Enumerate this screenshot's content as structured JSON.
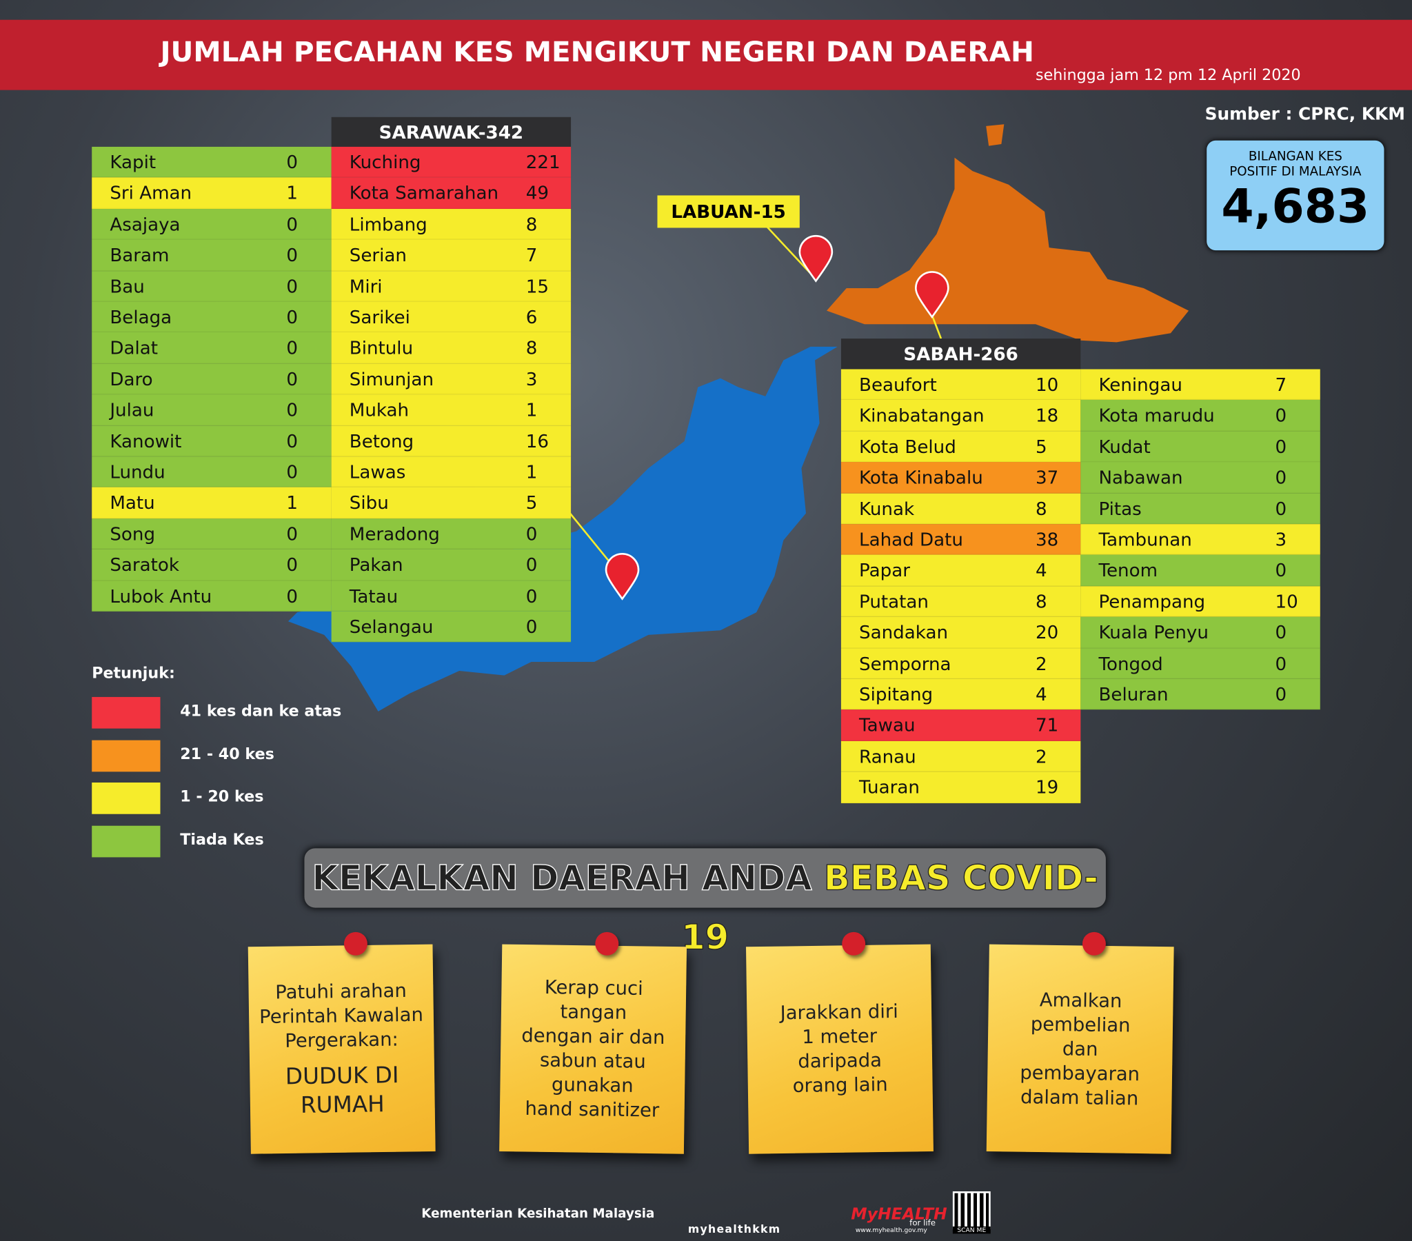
{
  "header": {
    "title": "JUMLAH PECAHAN KES MENGIKUT NEGERI DAN DAERAH",
    "subtitle": "sehingga jam 12 pm 12 April 2020",
    "source": "Sumber : CPRC, KKM"
  },
  "total": {
    "label_lines": [
      "BILANGAN KES",
      "POSITIF DI MALAYSIA"
    ],
    "value": "4,683"
  },
  "labuan": {
    "label": "LABUAN-15"
  },
  "sarawak": {
    "title": "SARAWAK-342",
    "columns": [
      [
        {
          "name": "Kapit",
          "cases": 0,
          "color": "#8dc63f"
        },
        {
          "name": "Sri Aman",
          "cases": 1,
          "color": "#f6ec2b"
        },
        {
          "name": "Asajaya",
          "cases": 0,
          "color": "#8dc63f"
        },
        {
          "name": "Baram",
          "cases": 0,
          "color": "#8dc63f"
        },
        {
          "name": "Bau",
          "cases": 0,
          "color": "#8dc63f"
        },
        {
          "name": "Belaga",
          "cases": 0,
          "color": "#8dc63f"
        },
        {
          "name": "Dalat",
          "cases": 0,
          "color": "#8dc63f"
        },
        {
          "name": "Daro",
          "cases": 0,
          "color": "#8dc63f"
        },
        {
          "name": "Julau",
          "cases": 0,
          "color": "#8dc63f"
        },
        {
          "name": "Kanowit",
          "cases": 0,
          "color": "#8dc63f"
        },
        {
          "name": "Lundu",
          "cases": 0,
          "color": "#8dc63f"
        },
        {
          "name": "Matu",
          "cases": 1,
          "color": "#f6ec2b"
        },
        {
          "name": "Song",
          "cases": 0,
          "color": "#8dc63f"
        },
        {
          "name": "Saratok",
          "cases": 0,
          "color": "#8dc63f"
        },
        {
          "name": "Lubok Antu",
          "cases": 0,
          "color": "#8dc63f"
        }
      ],
      [
        {
          "name": "Kuching",
          "cases": 221,
          "color": "#f2333f"
        },
        {
          "name": "Kota Samarahan",
          "cases": 49,
          "color": "#f2333f"
        },
        {
          "name": "Limbang",
          "cases": 8,
          "color": "#f6ec2b"
        },
        {
          "name": "Serian",
          "cases": 7,
          "color": "#f6ec2b"
        },
        {
          "name": "Miri",
          "cases": 15,
          "color": "#f6ec2b"
        },
        {
          "name": "Sarikei",
          "cases": 6,
          "color": "#f6ec2b"
        },
        {
          "name": "Bintulu",
          "cases": 8,
          "color": "#f6ec2b"
        },
        {
          "name": "Simunjan",
          "cases": 3,
          "color": "#f6ec2b"
        },
        {
          "name": "Mukah",
          "cases": 1,
          "color": "#f6ec2b"
        },
        {
          "name": "Betong",
          "cases": 16,
          "color": "#f6ec2b"
        },
        {
          "name": "Lawas",
          "cases": 1,
          "color": "#f6ec2b"
        },
        {
          "name": "Sibu",
          "cases": 5,
          "color": "#f6ec2b"
        },
        {
          "name": "Meradong",
          "cases": 0,
          "color": "#8dc63f"
        },
        {
          "name": "Pakan",
          "cases": 0,
          "color": "#8dc63f"
        },
        {
          "name": "Tatau",
          "cases": 0,
          "color": "#8dc63f"
        },
        {
          "name": "Selangau",
          "cases": 0,
          "color": "#8dc63f"
        }
      ]
    ]
  },
  "sabah": {
    "title": "SABAH-266",
    "columns": [
      [
        {
          "name": "Beaufort",
          "cases": 10,
          "color": "#f6ec2b"
        },
        {
          "name": "Kinabatangan",
          "cases": 18,
          "color": "#f6ec2b"
        },
        {
          "name": "Kota Belud",
          "cases": 5,
          "color": "#f6ec2b"
        },
        {
          "name": "Kota Kinabalu",
          "cases": 37,
          "color": "#f7921e"
        },
        {
          "name": "Kunak",
          "cases": 8,
          "color": "#f6ec2b"
        },
        {
          "name": "Lahad Datu",
          "cases": 38,
          "color": "#f7921e"
        },
        {
          "name": "Papar",
          "cases": 4,
          "color": "#f6ec2b"
        },
        {
          "name": "Putatan",
          "cases": 8,
          "color": "#f6ec2b"
        },
        {
          "name": "Sandakan",
          "cases": 20,
          "color": "#f6ec2b"
        },
        {
          "name": "Semporna",
          "cases": 2,
          "color": "#f6ec2b"
        },
        {
          "name": "Sipitang",
          "cases": 4,
          "color": "#f6ec2b"
        },
        {
          "name": "Tawau",
          "cases": 71,
          "color": "#f2333f"
        },
        {
          "name": "Ranau",
          "cases": 2,
          "color": "#f6ec2b"
        },
        {
          "name": "Tuaran",
          "cases": 19,
          "color": "#f6ec2b"
        }
      ],
      [
        {
          "name": "Keningau",
          "cases": 7,
          "color": "#f6ec2b"
        },
        {
          "name": "Kota marudu",
          "cases": 0,
          "color": "#8dc63f"
        },
        {
          "name": "Kudat",
          "cases": 0,
          "color": "#8dc63f"
        },
        {
          "name": "Nabawan",
          "cases": 0,
          "color": "#8dc63f"
        },
        {
          "name": "Pitas",
          "cases": 0,
          "color": "#8dc63f"
        },
        {
          "name": "Tambunan",
          "cases": 3,
          "color": "#f6ec2b"
        },
        {
          "name": "Tenom",
          "cases": 0,
          "color": "#8dc63f"
        },
        {
          "name": "Penampang",
          "cases": 10,
          "color": "#f6ec2b"
        },
        {
          "name": "Kuala Penyu",
          "cases": 0,
          "color": "#8dc63f"
        },
        {
          "name": "Tongod",
          "cases": 0,
          "color": "#8dc63f"
        },
        {
          "name": "Beluran",
          "cases": 0,
          "color": "#8dc63f"
        }
      ]
    ]
  },
  "legend": {
    "title": "Petunjuk:",
    "items": [
      {
        "label": "41 kes dan ke atas",
        "color": "#f2333f"
      },
      {
        "label": "21 - 40 kes",
        "color": "#f7921e"
      },
      {
        "label": "1 - 20 kes",
        "color": "#f6ec2b"
      },
      {
        "label": "Tiada Kes",
        "color": "#8dc63f"
      }
    ]
  },
  "slogan": {
    "text": "KEKALKAN DAERAH ANDA",
    "highlight": "BEBAS COVID-19"
  },
  "notes": [
    {
      "lines": [
        "Patuhi arahan",
        "Perintah Kawalan",
        "Pergerakan:"
      ],
      "emphasis": [
        "DUDUK DI",
        "RUMAH"
      ]
    },
    {
      "lines": [
        "Kerap cuci",
        "tangan",
        "dengan air dan",
        "sabun atau",
        "gunakan",
        "hand sanitizer"
      ]
    },
    {
      "lines": [
        "Jarakkan diri",
        "1 meter",
        "daripada",
        "orang lain"
      ]
    },
    {
      "lines": [
        "Amalkan",
        "pembelian",
        "dan",
        "pembayaran",
        "dalam talian"
      ]
    }
  ],
  "footer": {
    "ministry": "Kementerian Kesihatan Malaysia",
    "social": "myhealthkkm",
    "brand": "MyHEALTH",
    "tagline": "for life",
    "website": "www.myhealth.gov.my",
    "qr": "SCAN ME"
  }
}
